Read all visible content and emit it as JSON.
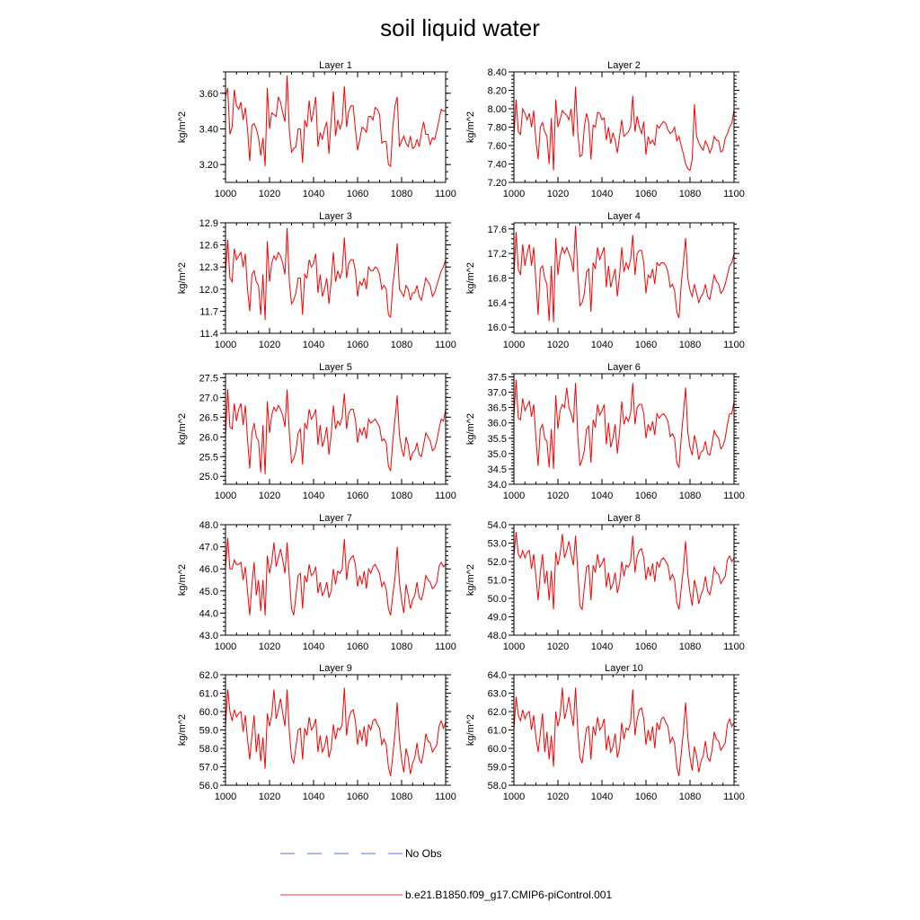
{
  "title": "soil liquid water",
  "legend": [
    {
      "label": "No Obs",
      "color": "#5a6fd8",
      "style": "dashed"
    },
    {
      "label": "b.e21.B1850.f09_g17.CMIP6-piControl.001",
      "color": "#e8383c",
      "style": "solid"
    }
  ],
  "colors": {
    "series": "#ff0000",
    "axis": "#000000"
  },
  "chart_data": [
    {
      "type": "line",
      "title": "Layer 1",
      "ylabel": "kg/m^2",
      "xlim": [
        1000,
        1100
      ],
      "xticks": [
        1000,
        1020,
        1040,
        1060,
        1080,
        1100
      ],
      "ylim": [
        3.1,
        3.72
      ],
      "yticks": [
        3.2,
        3.4,
        3.6
      ],
      "ydecimals": 2,
      "x_start": 1000,
      "x_step": 1,
      "values": [
        3.58,
        3.63,
        3.37,
        3.41,
        3.62,
        3.53,
        3.51,
        3.55,
        3.45,
        3.52,
        3.4,
        3.22,
        3.42,
        3.43,
        3.4,
        3.35,
        3.25,
        3.35,
        3.19,
        3.63,
        3.4,
        3.49,
        3.48,
        3.47,
        3.58,
        3.55,
        3.49,
        3.44,
        3.7,
        3.39,
        3.27,
        3.29,
        3.3,
        3.4,
        3.4,
        3.21,
        3.45,
        3.41,
        3.56,
        3.44,
        3.5,
        3.58,
        3.3,
        3.38,
        3.34,
        3.4,
        3.44,
        3.26,
        3.45,
        3.61,
        3.36,
        3.45,
        3.4,
        3.44,
        3.64,
        3.41,
        3.5,
        3.53,
        3.53,
        3.4,
        3.28,
        3.34,
        3.41,
        3.4,
        3.38,
        3.47,
        3.47,
        3.45,
        3.52,
        3.51,
        3.48,
        3.32,
        3.33,
        3.33,
        3.2,
        3.19,
        3.41,
        3.53,
        3.58,
        3.3,
        3.33,
        3.36,
        3.32,
        3.3,
        3.36,
        3.29,
        3.3,
        3.34,
        3.3,
        3.38,
        3.44,
        3.37,
        3.37,
        3.31,
        3.35,
        3.34,
        3.39,
        3.45,
        3.51,
        3.5,
        3.5
      ]
    },
    {
      "type": "line",
      "title": "Layer 2",
      "ylabel": "kg/m^2",
      "xlim": [
        1000,
        1100
      ],
      "xticks": [
        1000,
        1020,
        1040,
        1060,
        1080,
        1100
      ],
      "ylim": [
        7.2,
        8.4
      ],
      "yticks": [
        7.2,
        7.4,
        7.6,
        7.8,
        8.0,
        8.2,
        8.4
      ],
      "ydecimals": 2,
      "x_start": 1000,
      "x_step": 1,
      "values": [
        7.7,
        8.1,
        7.75,
        7.72,
        8.0,
        7.95,
        7.88,
        7.95,
        7.8,
        7.98,
        7.65,
        7.45,
        7.8,
        7.85,
        7.75,
        7.7,
        7.4,
        7.9,
        7.33,
        8.1,
        7.8,
        7.88,
        7.98,
        7.95,
        7.93,
        7.88,
        8.0,
        7.7,
        8.24,
        7.75,
        7.48,
        7.5,
        7.8,
        7.95,
        7.85,
        7.45,
        7.82,
        7.8,
        7.96,
        7.95,
        7.88,
        7.9,
        7.66,
        7.8,
        7.62,
        7.74,
        7.66,
        7.52,
        7.7,
        7.88,
        7.7,
        7.72,
        7.75,
        7.8,
        8.14,
        7.75,
        7.92,
        7.8,
        7.73,
        7.86,
        7.5,
        7.7,
        7.62,
        7.66,
        7.6,
        7.82,
        7.79,
        7.83,
        7.86,
        7.84,
        7.77,
        7.73,
        7.75,
        7.8,
        7.65,
        7.7,
        7.6,
        7.51,
        7.4,
        7.35,
        7.33,
        7.45,
        8.05,
        7.7,
        7.63,
        7.58,
        7.55,
        7.65,
        7.6,
        7.52,
        7.58,
        7.7,
        7.66,
        7.65,
        7.53,
        7.55,
        7.68,
        7.73,
        7.8,
        7.84,
        7.99
      ]
    },
    {
      "type": "line",
      "title": "Layer 3",
      "ylabel": "kg/m^2",
      "xlim": [
        1000,
        1100
      ],
      "xticks": [
        1000,
        1020,
        1040,
        1060,
        1080,
        1100
      ],
      "ylim": [
        11.4,
        12.9
      ],
      "yticks": [
        11.4,
        11.7,
        12.0,
        12.3,
        12.6,
        12.9
      ],
      "ydecimals": 1,
      "x_start": 1000,
      "x_step": 1,
      "values": [
        12.2,
        12.67,
        12.15,
        12.1,
        12.55,
        12.4,
        12.45,
        12.5,
        12.3,
        12.48,
        12.0,
        11.7,
        12.2,
        12.25,
        12.1,
        12.05,
        11.65,
        12.2,
        11.58,
        12.65,
        12.1,
        12.35,
        12.45,
        12.4,
        12.5,
        12.45,
        12.35,
        12.2,
        12.83,
        12.1,
        11.8,
        11.85,
        11.95,
        12.15,
        12.15,
        11.65,
        12.2,
        12.15,
        12.4,
        12.3,
        12.35,
        12.48,
        11.95,
        12.2,
        11.9,
        12.0,
        12.15,
        11.8,
        12.1,
        12.5,
        12.1,
        12.25,
        12.15,
        12.25,
        12.7,
        12.15,
        12.35,
        12.4,
        12.4,
        12.25,
        11.9,
        12.1,
        12.05,
        12.15,
        12.0,
        12.3,
        12.25,
        12.25,
        12.3,
        12.28,
        12.2,
        12.0,
        12.05,
        12.0,
        11.65,
        11.62,
        12.05,
        12.3,
        12.62,
        12.0,
        11.95,
        11.9,
        12.05,
        12.0,
        11.85,
        11.95,
        11.95,
        12.05,
        11.9,
        11.85,
        12.0,
        12.15,
        12.1,
        12.05,
        11.9,
        11.95,
        12.05,
        12.15,
        12.25,
        12.3,
        12.4
      ]
    },
    {
      "type": "line",
      "title": "Layer 4",
      "ylabel": "kg/m^2",
      "xlim": [
        1000,
        1100
      ],
      "xticks": [
        1000,
        1020,
        1040,
        1060,
        1080,
        1100
      ],
      "ylim": [
        15.9,
        17.7
      ],
      "yticks": [
        16.0,
        16.4,
        16.8,
        17.2,
        17.6
      ],
      "ydecimals": 1,
      "x_start": 1000,
      "x_step": 1,
      "values": [
        16.8,
        17.55,
        16.95,
        16.85,
        17.35,
        17.0,
        17.2,
        17.35,
        17.0,
        17.3,
        16.75,
        16.2,
        16.95,
        17.0,
        16.8,
        16.7,
        16.1,
        17.0,
        16.08,
        17.45,
        16.85,
        17.15,
        17.3,
        17.2,
        17.3,
        17.2,
        17.1,
        16.9,
        17.65,
        16.9,
        16.35,
        16.4,
        16.55,
        16.9,
        16.95,
        16.25,
        17.05,
        16.95,
        17.3,
        17.1,
        17.2,
        17.3,
        16.65,
        17.0,
        16.65,
        16.8,
        16.95,
        16.5,
        16.85,
        17.3,
        16.9,
        17.05,
        16.95,
        17.1,
        17.5,
        16.85,
        17.2,
        17.25,
        17.25,
        17.05,
        16.55,
        16.85,
        16.8,
        16.95,
        16.7,
        17.05,
        17.0,
        17.05,
        17.05,
        17.0,
        16.9,
        16.65,
        16.7,
        16.6,
        16.25,
        16.15,
        16.7,
        17.05,
        17.45,
        16.8,
        16.6,
        16.5,
        16.7,
        16.55,
        16.4,
        16.5,
        16.55,
        16.7,
        16.5,
        16.45,
        16.65,
        16.85,
        16.75,
        16.7,
        16.55,
        16.6,
        16.7,
        16.85,
        17.0,
        17.05,
        17.2
      ]
    },
    {
      "type": "line",
      "title": "Layer 5",
      "ylabel": "kg/m^2",
      "xlim": [
        1000,
        1100
      ],
      "xticks": [
        1000,
        1020,
        1040,
        1060,
        1080,
        1100
      ],
      "ylim": [
        24.8,
        27.6
      ],
      "yticks": [
        25.0,
        25.5,
        26.0,
        26.5,
        27.0,
        27.5
      ],
      "ydecimals": 1,
      "x_start": 1000,
      "x_step": 1,
      "values": [
        26.0,
        27.2,
        26.25,
        26.2,
        26.85,
        26.4,
        26.7,
        26.85,
        26.3,
        26.8,
        25.95,
        25.2,
        26.1,
        26.35,
        26.0,
        25.9,
        25.1,
        26.3,
        25.05,
        26.9,
        26.1,
        26.55,
        26.75,
        26.65,
        26.8,
        26.7,
        26.55,
        26.25,
        27.2,
        26.1,
        25.35,
        25.45,
        25.65,
        26.1,
        26.2,
        25.3,
        26.35,
        26.2,
        26.7,
        26.45,
        26.55,
        26.7,
        25.8,
        26.3,
        25.75,
        25.95,
        26.25,
        25.55,
        26.05,
        26.8,
        26.2,
        26.4,
        26.3,
        26.5,
        27.1,
        26.2,
        26.6,
        26.7,
        26.7,
        26.45,
        25.85,
        26.2,
        26.05,
        26.25,
        25.95,
        26.45,
        26.35,
        26.4,
        26.45,
        26.35,
        26.25,
        25.9,
        25.95,
        25.85,
        25.25,
        25.15,
        25.9,
        26.45,
        27.05,
        26.05,
        25.7,
        25.5,
        26.0,
        25.8,
        25.4,
        25.6,
        25.65,
        25.85,
        25.55,
        25.5,
        25.8,
        26.1,
        26.0,
        25.9,
        25.65,
        25.7,
        25.9,
        26.2,
        26.45,
        26.4,
        26.7
      ]
    },
    {
      "type": "line",
      "title": "Layer 6",
      "ylabel": "kg/m^2",
      "xlim": [
        1000,
        1100
      ],
      "xticks": [
        1000,
        1020,
        1040,
        1060,
        1080,
        1100
      ],
      "ylim": [
        34.0,
        37.6
      ],
      "yticks": [
        34.0,
        34.5,
        35.0,
        35.5,
        36.0,
        36.5,
        37.0,
        37.5
      ],
      "ydecimals": 1,
      "x_start": 1000,
      "x_step": 1,
      "values": [
        36.2,
        37.4,
        36.15,
        36.1,
        36.8,
        36.4,
        36.55,
        36.7,
        36.2,
        36.6,
        35.5,
        34.6,
        35.8,
        35.95,
        35.5,
        35.4,
        34.55,
        35.8,
        34.5,
        36.9,
        35.8,
        36.4,
        36.6,
        36.5,
        37.15,
        36.5,
        36.3,
        36.0,
        37.3,
        35.6,
        34.6,
        34.8,
        35.1,
        35.8,
        35.9,
        34.7,
        36.1,
        35.85,
        36.6,
        36.25,
        36.4,
        36.6,
        35.3,
        36.0,
        35.2,
        35.5,
        35.95,
        35.0,
        35.7,
        36.7,
        35.95,
        36.2,
        36.05,
        36.3,
        37.3,
        35.95,
        36.5,
        36.6,
        36.6,
        36.3,
        35.5,
        35.95,
        35.75,
        36.05,
        35.6,
        36.3,
        36.15,
        36.25,
        36.3,
        36.2,
        36.05,
        35.55,
        35.65,
        35.5,
        34.7,
        34.55,
        35.5,
        36.3,
        37.15,
        35.7,
        35.2,
        34.95,
        35.6,
        35.3,
        34.8,
        35.05,
        35.1,
        35.4,
        35.0,
        34.95,
        35.3,
        35.75,
        35.6,
        35.5,
        35.15,
        35.25,
        35.5,
        35.95,
        36.3,
        36.3,
        36.7
      ]
    },
    {
      "type": "line",
      "title": "Layer 7",
      "ylabel": "kg/m^2",
      "xlim": [
        1000,
        1100
      ],
      "xticks": [
        1000,
        1020,
        1040,
        1060,
        1080,
        1100
      ],
      "ylim": [
        43.0,
        48.0
      ],
      "yticks": [
        43.0,
        44.0,
        45.0,
        46.0,
        47.0,
        48.0
      ],
      "ydecimals": 1,
      "x_start": 1000,
      "x_step": 1,
      "values": [
        46.0,
        47.4,
        46.0,
        46.0,
        46.4,
        46.2,
        46.2,
        46.3,
        45.5,
        46.1,
        45.0,
        43.9,
        45.3,
        46.3,
        44.8,
        45.5,
        44.1,
        45.5,
        43.9,
        46.6,
        45.8,
        46.3,
        47.2,
        46.1,
        46.5,
        46.9,
        46.4,
        45.8,
        47.2,
        45.6,
        44.2,
        43.9,
        44.8,
        45.7,
        45.8,
        44.2,
        45.7,
        45.4,
        46.2,
        45.7,
        45.8,
        46.1,
        44.9,
        45.4,
        44.8,
        45.0,
        45.4,
        44.7,
        45.0,
        46.0,
        45.3,
        45.9,
        45.8,
        46.0,
        47.35,
        45.5,
        46.3,
        46.5,
        46.6,
        46.2,
        45.2,
        45.7,
        45.3,
        45.9,
        45.1,
        46.0,
        45.8,
        46.1,
        46.2,
        46.0,
        45.8,
        45.2,
        45.4,
        45.1,
        44.2,
        43.9,
        44.8,
        45.6,
        47.0,
        45.4,
        44.6,
        44.0,
        45.3,
        44.8,
        44.2,
        44.6,
        44.8,
        45.4,
        44.7,
        44.6,
        45.0,
        45.7,
        45.5,
        45.4,
        45.1,
        45.2,
        45.4,
        46.1,
        46.3,
        46.1,
        46.2
      ]
    },
    {
      "type": "line",
      "title": "Layer 8",
      "ylabel": "kg/m^2",
      "xlim": [
        1000,
        1100
      ],
      "xticks": [
        1000,
        1020,
        1040,
        1060,
        1080,
        1100
      ],
      "ylim": [
        48.0,
        54.0
      ],
      "yticks": [
        48.0,
        49.0,
        50.0,
        51.0,
        52.0,
        53.0,
        54.0
      ],
      "ydecimals": 1,
      "x_start": 1000,
      "x_step": 1,
      "values": [
        52.3,
        53.6,
        52.4,
        52.2,
        52.6,
        52.2,
        52.5,
        52.6,
        51.6,
        52.4,
        51.2,
        49.9,
        51.4,
        52.4,
        50.8,
        51.5,
        49.9,
        51.5,
        49.4,
        52.5,
        51.8,
        52.4,
        53.5,
        52.2,
        52.6,
        53.1,
        52.4,
        51.8,
        53.4,
        51.5,
        49.6,
        49.4,
        50.6,
        51.7,
        51.8,
        49.9,
        51.8,
        51.4,
        52.4,
        51.7,
        51.9,
        52.2,
        50.6,
        51.4,
        50.5,
        50.8,
        51.4,
        50.3,
        50.8,
        52.0,
        51.2,
        51.8,
        51.7,
        52.0,
        53.4,
        51.4,
        52.3,
        52.6,
        52.7,
        52.2,
        51.0,
        51.7,
        51.2,
        51.9,
        50.9,
        52.0,
        51.7,
        52.1,
        52.2,
        52.0,
        51.8,
        51.0,
        51.3,
        51.0,
        49.8,
        49.4,
        50.5,
        51.6,
        53.1,
        51.3,
        50.3,
        49.6,
        51.0,
        50.5,
        49.7,
        50.2,
        50.5,
        51.2,
        50.4,
        50.2,
        50.8,
        51.7,
        51.4,
        51.3,
        50.8,
        51.0,
        51.2,
        52.1,
        52.3,
        52.0,
        52.2
      ]
    },
    {
      "type": "line",
      "title": "Layer 9",
      "ylabel": "kg/m^2",
      "xlim": [
        1000,
        1100
      ],
      "xticks": [
        1000,
        1020,
        1040,
        1060,
        1080,
        1100
      ],
      "ylim": [
        56.0,
        62.0
      ],
      "yticks": [
        56.0,
        57.0,
        58.0,
        59.0,
        60.0,
        61.0,
        62.0
      ],
      "ydecimals": 1,
      "x_start": 1000,
      "x_step": 1,
      "values": [
        59.2,
        61.2,
        60.0,
        59.5,
        60.1,
        59.7,
        59.9,
        60.0,
        58.9,
        59.8,
        58.5,
        57.4,
        58.7,
        59.8,
        57.8,
        58.8,
        57.3,
        58.6,
        56.9,
        59.9,
        59.2,
        59.8,
        61.2,
        59.6,
        60.1,
        60.7,
        59.9,
        59.2,
        61.2,
        58.9,
        57.5,
        57.2,
        58.1,
        59.0,
        59.1,
        57.4,
        59.1,
        58.7,
        59.7,
        59.0,
        59.2,
        59.6,
        57.8,
        58.7,
        57.8,
        58.1,
        58.7,
        57.5,
        58.0,
        59.3,
        58.5,
        59.1,
        59.0,
        59.3,
        61.3,
        58.7,
        59.6,
        60.0,
        60.1,
        59.5,
        58.2,
        59.0,
        58.4,
        59.2,
        58.1,
        59.3,
        59.0,
        59.5,
        59.6,
        59.3,
        59.1,
        58.2,
        58.5,
        58.2,
        57.0,
        56.5,
        57.6,
        58.8,
        60.5,
        58.5,
        57.4,
        56.7,
        58.0,
        57.5,
        56.6,
        57.2,
        57.5,
        58.3,
        57.4,
        57.2,
        57.8,
        58.8,
        58.4,
        58.3,
        57.8,
        58.0,
        58.2,
        59.2,
        59.5,
        59.1,
        59.4
      ]
    },
    {
      "type": "line",
      "title": "Layer 10",
      "ylabel": "kg/m^2",
      "xlim": [
        1000,
        1100
      ],
      "xticks": [
        1000,
        1020,
        1040,
        1060,
        1080,
        1100
      ],
      "ylim": [
        58.0,
        64.0
      ],
      "yticks": [
        58.0,
        59.0,
        60.0,
        61.0,
        62.0,
        63.0,
        64.0
      ],
      "ydecimals": 1,
      "x_start": 1000,
      "x_step": 1,
      "values": [
        61.0,
        62.8,
        61.8,
        61.5,
        62.1,
        61.6,
        61.9,
        62.0,
        61.0,
        61.8,
        60.6,
        59.8,
        60.8,
        61.9,
        59.8,
        60.9,
        59.4,
        60.7,
        59.0,
        62.0,
        61.2,
        61.8,
        63.3,
        61.6,
        62.1,
        62.8,
        61.9,
        61.2,
        63.3,
        61.0,
        59.5,
        59.2,
        60.2,
        61.1,
        61.2,
        59.4,
        61.2,
        60.7,
        61.7,
        61.0,
        61.2,
        61.6,
        59.9,
        60.7,
        59.8,
        60.1,
        60.8,
        59.5,
        60.0,
        61.4,
        60.5,
        61.1,
        61.0,
        61.4,
        63.2,
        60.7,
        61.6,
        62.1,
        62.2,
        61.6,
        60.2,
        61.0,
        60.4,
        61.2,
        60.0,
        61.4,
        61.0,
        61.6,
        61.7,
        61.4,
        61.2,
        60.3,
        60.6,
        60.3,
        59.0,
        58.5,
        59.7,
        60.9,
        62.5,
        60.6,
        59.5,
        58.8,
        60.1,
        59.6,
        58.7,
        59.3,
        59.6,
        60.4,
        59.5,
        59.3,
        59.9,
        60.9,
        60.5,
        60.4,
        59.9,
        60.1,
        60.3,
        61.3,
        61.6,
        61.2,
        61.4
      ]
    }
  ]
}
